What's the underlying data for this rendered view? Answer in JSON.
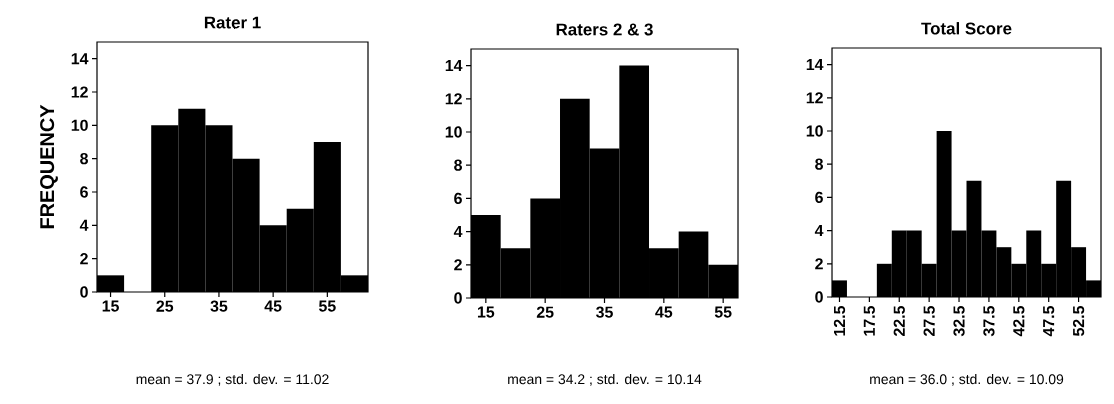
{
  "chart_data": [
    {
      "type": "histogram",
      "title": "Rater 1",
      "ylabel": "FREQUENCY",
      "bins": [
        12.5,
        17.5,
        22.5,
        27.5,
        32.5,
        37.5,
        42.5,
        47.5,
        52.5,
        57.5,
        62.5
      ],
      "values": [
        1,
        0,
        10,
        11,
        10,
        8,
        4,
        5,
        9,
        1
      ],
      "color": "#000000",
      "xlim": [
        12.5,
        62.5
      ],
      "xticks": [
        15,
        25,
        35,
        45,
        55
      ],
      "ylim": [
        0,
        15
      ],
      "yticks": [
        0,
        2,
        4,
        6,
        8,
        10,
        12,
        14
      ],
      "annotations": [
        "mean = 37.9 ; std. dev. = 11.02"
      ]
    },
    {
      "type": "histogram",
      "title": "Raters 2 & 3",
      "bins": [
        12.5,
        17.5,
        22.5,
        27.5,
        32.5,
        37.5,
        42.5,
        47.5,
        52.5,
        57.5
      ],
      "values": [
        5,
        3,
        6,
        12,
        9,
        14,
        3,
        4,
        2
      ],
      "color": "#000000",
      "xlim": [
        12.5,
        57.5
      ],
      "xticks": [
        15,
        25,
        35,
        45,
        55
      ],
      "ylim": [
        0,
        15
      ],
      "yticks": [
        0,
        2,
        4,
        6,
        8,
        10,
        12,
        14
      ],
      "annotations": [
        "mean = 34.2 ; std. dev. = 10.14"
      ]
    },
    {
      "type": "histogram",
      "title": "Total Score",
      "bins": [
        11.25,
        13.75,
        16.25,
        18.75,
        21.25,
        23.75,
        26.25,
        28.75,
        31.25,
        33.75,
        36.25,
        38.75,
        41.25,
        43.75,
        46.25,
        48.75,
        51.25,
        53.75,
        56.25
      ],
      "values": [
        1,
        0,
        0,
        2,
        4,
        4,
        2,
        10,
        4,
        7,
        4,
        3,
        2,
        4,
        2,
        7,
        3,
        1
      ],
      "color": "#000000",
      "xlim": [
        11.25,
        56.25
      ],
      "xticks": [
        12.5,
        17.5,
        22.5,
        27.5,
        32.5,
        37.5,
        42.5,
        47.5,
        52.5
      ],
      "ylim": [
        0,
        15
      ],
      "yticks": [
        0,
        2,
        4,
        6,
        8,
        10,
        12,
        14
      ],
      "annotations": [
        "mean = 36.0 ; std. dev. = 10.09"
      ]
    }
  ]
}
